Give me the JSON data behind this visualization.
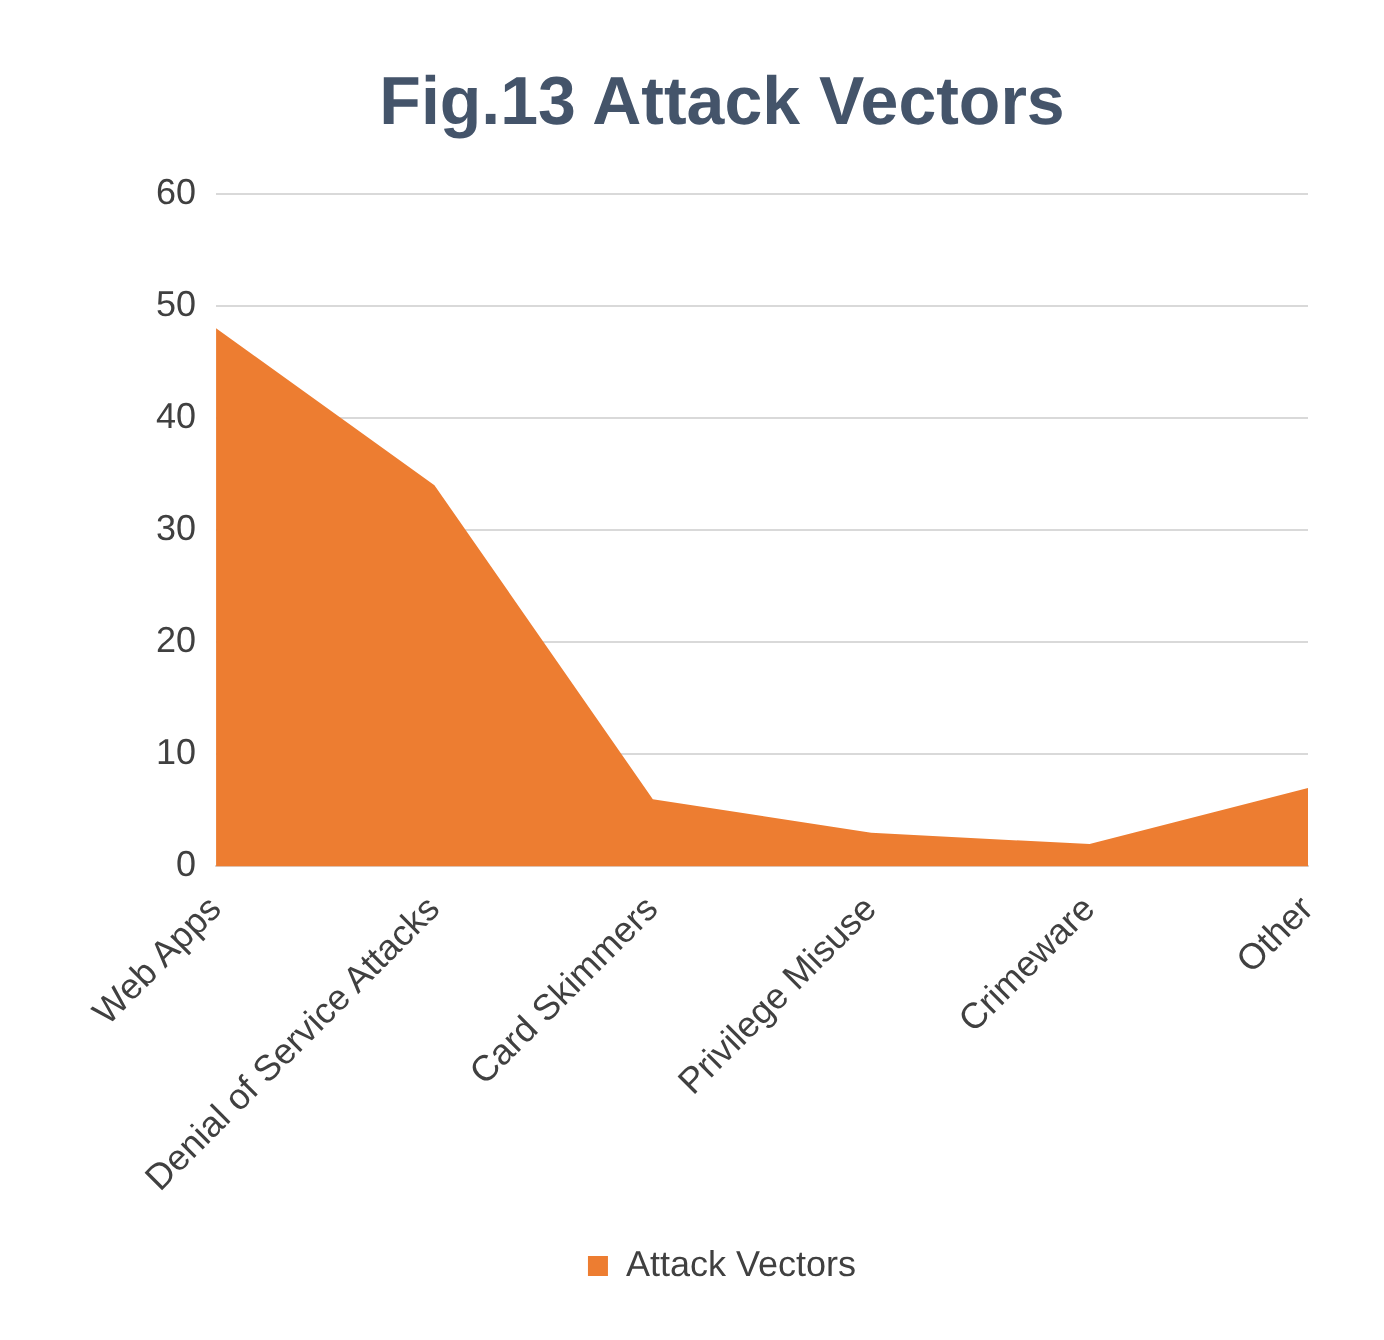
{
  "chart_data": {
    "type": "area",
    "title": "Fig.13 Attack Vectors",
    "categories": [
      "Web Apps",
      "Denial of Service Attacks",
      "Card Skimmers",
      "Privilege Misuse",
      "Crimeware",
      "Other"
    ],
    "series": [
      {
        "name": "Attack Vectors",
        "color": "#ed7d31",
        "values": [
          48,
          34,
          6,
          3,
          2,
          7
        ]
      }
    ],
    "ylim": [
      0,
      60
    ],
    "yticks": [
      0,
      10,
      20,
      30,
      40,
      50,
      60
    ],
    "grid": "y",
    "legend": "bottom"
  }
}
